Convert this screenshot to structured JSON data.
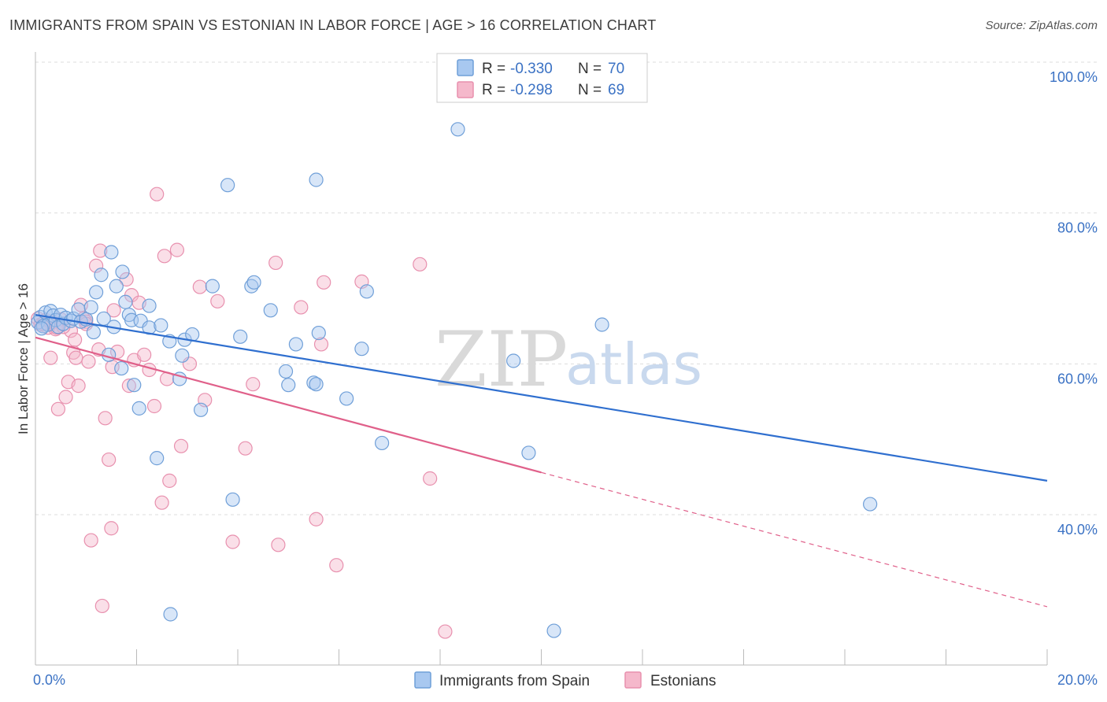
{
  "header": {
    "title": "IMMIGRANTS FROM SPAIN VS ESTONIAN IN LABOR FORCE | AGE > 16 CORRELATION CHART",
    "source": "Source: ZipAtlas.com"
  },
  "watermark": {
    "zip": "ZIP",
    "atlas": "atlas"
  },
  "legend": {
    "spain": {
      "r_label": "R =",
      "r_value": "-0.330",
      "n_label": "N =",
      "n_value": "70"
    },
    "estonia": {
      "r_label": "R =",
      "r_value": "-0.298",
      "n_label": "N =",
      "n_value": "69"
    }
  },
  "bottom_legend": {
    "spain": "Immigrants from Spain",
    "estonia": "Estonians"
  },
  "colors": {
    "spain_fill": "#a8c8f0",
    "spain_stroke": "#6f9fd8",
    "spain_line": "#2f6fcf",
    "estonia_fill": "#f5b8cb",
    "estonia_stroke": "#e890ae",
    "estonia_line": "#e0608a",
    "tick": "#3b72c4",
    "grid": "#dddddd"
  },
  "chart_data": {
    "type": "scatter",
    "title": "IMMIGRANTS FROM SPAIN VS ESTONIAN IN LABOR FORCE | AGE > 16 CORRELATION CHART",
    "xlabel": "",
    "ylabel": "In Labor Force | Age > 16",
    "xlim": [
      0,
      20
    ],
    "ylim": [
      22,
      103
    ],
    "x_tick_labels": [
      {
        "value": 0,
        "label": "0.0%"
      },
      {
        "value": 20,
        "label": "20.0%"
      }
    ],
    "y_tick_labels": [
      {
        "value": 100,
        "label": "100.0%"
      },
      {
        "value": 80,
        "label": "80.0%"
      },
      {
        "value": 60,
        "label": "60.0%"
      },
      {
        "value": 40,
        "label": "40.0%"
      }
    ],
    "x_minor_ticks": [
      0,
      2,
      4,
      6,
      8,
      10,
      12,
      14,
      16,
      18,
      20
    ],
    "grid": true,
    "legend_position": "top-center",
    "series": [
      {
        "name": "Immigrants from Spain",
        "points": [
          [
            0.05,
            65.5
          ],
          [
            0.1,
            66.2
          ],
          [
            0.15,
            65.0
          ],
          [
            0.2,
            66.8
          ],
          [
            0.25,
            65.2
          ],
          [
            0.3,
            67.0
          ],
          [
            0.35,
            66.4
          ],
          [
            0.4,
            65.8
          ],
          [
            0.45,
            64.9
          ],
          [
            0.5,
            66.5
          ],
          [
            0.55,
            65.3
          ],
          [
            0.6,
            66.1
          ],
          [
            0.7,
            65.7
          ],
          [
            0.75,
            66.0
          ],
          [
            0.85,
            67.2
          ],
          [
            0.9,
            65.6
          ],
          [
            1.0,
            65.9
          ],
          [
            1.1,
            67.5
          ],
          [
            1.15,
            64.2
          ],
          [
            1.2,
            69.5
          ],
          [
            1.3,
            71.8
          ],
          [
            1.35,
            66.0
          ],
          [
            1.45,
            61.2
          ],
          [
            1.5,
            74.8
          ],
          [
            1.55,
            64.9
          ],
          [
            1.6,
            70.3
          ],
          [
            1.7,
            59.4
          ],
          [
            1.72,
            72.2
          ],
          [
            1.78,
            68.2
          ],
          [
            1.85,
            66.5
          ],
          [
            1.9,
            65.8
          ],
          [
            1.95,
            57.2
          ],
          [
            2.05,
            54.1
          ],
          [
            2.08,
            65.7
          ],
          [
            2.25,
            67.7
          ],
          [
            2.25,
            64.8
          ],
          [
            2.4,
            47.5
          ],
          [
            2.48,
            65.1
          ],
          [
            2.65,
            63.0
          ],
          [
            2.67,
            26.8
          ],
          [
            2.85,
            58.0
          ],
          [
            2.9,
            61.1
          ],
          [
            2.95,
            63.2
          ],
          [
            3.1,
            63.9
          ],
          [
            3.27,
            53.9
          ],
          [
            3.5,
            70.3
          ],
          [
            3.8,
            83.7
          ],
          [
            3.9,
            42.0
          ],
          [
            4.05,
            63.6
          ],
          [
            4.27,
            70.3
          ],
          [
            4.32,
            70.8
          ],
          [
            4.65,
            67.1
          ],
          [
            4.95,
            59.0
          ],
          [
            5.0,
            57.2
          ],
          [
            5.15,
            62.6
          ],
          [
            5.5,
            57.5
          ],
          [
            5.55,
            57.3
          ],
          [
            5.55,
            84.4
          ],
          [
            5.6,
            64.1
          ],
          [
            6.15,
            55.4
          ],
          [
            6.45,
            62.0
          ],
          [
            6.55,
            69.6
          ],
          [
            6.85,
            49.5
          ],
          [
            8.35,
            91.1
          ],
          [
            9.45,
            60.4
          ],
          [
            9.75,
            48.2
          ],
          [
            10.25,
            24.6
          ],
          [
            11.2,
            65.2
          ],
          [
            16.5,
            41.4
          ],
          [
            0.12,
            64.7
          ]
        ],
        "trend": {
          "x0": 0,
          "y0": 66.5,
          "x1": 20,
          "y1": 44.5
        }
      },
      {
        "name": "Estonians",
        "points": [
          [
            0.05,
            66.0
          ],
          [
            0.1,
            65.2
          ],
          [
            0.2,
            65.8
          ],
          [
            0.25,
            64.8
          ],
          [
            0.3,
            60.8
          ],
          [
            0.35,
            65.5
          ],
          [
            0.4,
            64.6
          ],
          [
            0.45,
            54.0
          ],
          [
            0.5,
            65.9
          ],
          [
            0.6,
            55.6
          ],
          [
            0.65,
            57.6
          ],
          [
            0.7,
            64.4
          ],
          [
            0.75,
            61.5
          ],
          [
            0.78,
            63.2
          ],
          [
            0.8,
            60.8
          ],
          [
            0.85,
            57.1
          ],
          [
            0.9,
            67.8
          ],
          [
            0.95,
            66.0
          ],
          [
            1.0,
            65.6
          ],
          [
            1.05,
            60.3
          ],
          [
            1.1,
            36.6
          ],
          [
            1.2,
            73.0
          ],
          [
            1.25,
            61.9
          ],
          [
            1.28,
            75.0
          ],
          [
            1.32,
            27.9
          ],
          [
            1.38,
            52.8
          ],
          [
            1.45,
            47.3
          ],
          [
            1.5,
            38.2
          ],
          [
            1.52,
            59.6
          ],
          [
            1.55,
            67.1
          ],
          [
            1.62,
            61.6
          ],
          [
            1.8,
            71.2
          ],
          [
            1.85,
            57.1
          ],
          [
            1.9,
            69.1
          ],
          [
            1.95,
            60.5
          ],
          [
            2.05,
            68.1
          ],
          [
            2.15,
            61.2
          ],
          [
            2.25,
            59.2
          ],
          [
            2.35,
            54.4
          ],
          [
            2.4,
            82.5
          ],
          [
            2.5,
            41.6
          ],
          [
            2.55,
            74.3
          ],
          [
            2.6,
            58.0
          ],
          [
            2.65,
            44.5
          ],
          [
            2.8,
            75.1
          ],
          [
            2.88,
            49.1
          ],
          [
            3.05,
            60.0
          ],
          [
            3.25,
            70.2
          ],
          [
            3.35,
            55.2
          ],
          [
            3.6,
            68.3
          ],
          [
            3.9,
            36.4
          ],
          [
            4.15,
            48.8
          ],
          [
            4.3,
            57.3
          ],
          [
            4.75,
            73.4
          ],
          [
            4.8,
            36.0
          ],
          [
            5.25,
            67.5
          ],
          [
            5.55,
            39.4
          ],
          [
            5.65,
            62.6
          ],
          [
            5.7,
            70.8
          ],
          [
            5.95,
            33.3
          ],
          [
            6.45,
            70.9
          ],
          [
            7.6,
            73.2
          ],
          [
            7.8,
            44.8
          ],
          [
            8.1,
            24.5
          ],
          [
            0.15,
            65.3
          ],
          [
            0.55,
            64.9
          ],
          [
            1.0,
            65.3
          ],
          [
            0.3,
            65.6
          ],
          [
            0.42,
            64.8
          ]
        ],
        "trend": {
          "x0": 0,
          "y0": 63.5,
          "x1": 10,
          "y1": 45.6
        },
        "trend_extension": {
          "x0": 10,
          "y0": 45.6,
          "x1": 20,
          "y1": 27.8
        }
      }
    ]
  }
}
